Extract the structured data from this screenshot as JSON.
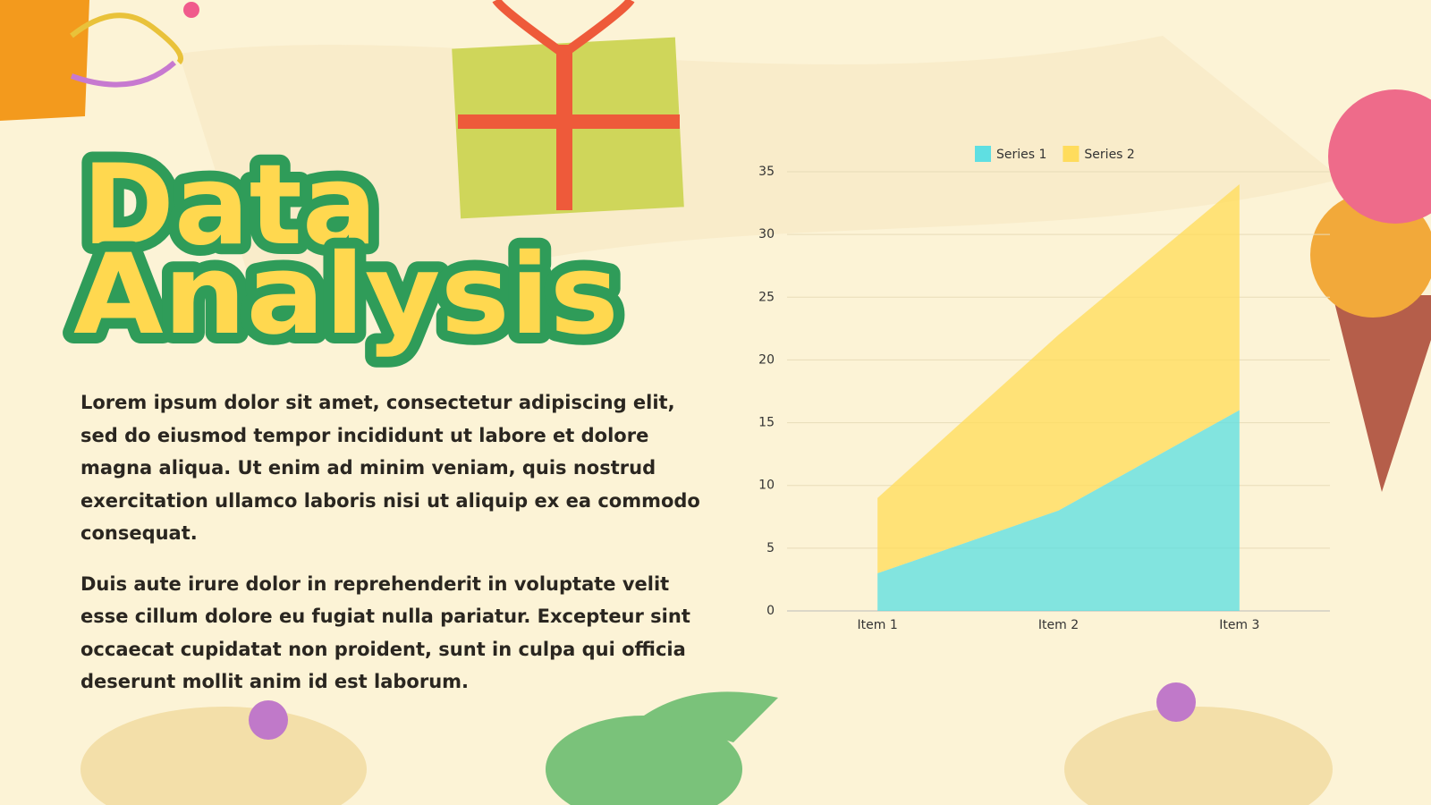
{
  "slide": {
    "title_lines": [
      "Data",
      "Analysis"
    ],
    "paragraphs": [
      "Lorem ipsum dolor sit amet, consectetur adipiscing elit, sed do eiusmod tempor incididunt ut labore et dolore magna aliqua. Ut enim ad minim veniam, quis nostrud exercitation ullamco laboris nisi ut aliquip ex ea commodo consequat.",
      "Duis aute irure dolor in reprehenderit in voluptate velit esse cillum dolore eu fugiat nulla pariatur. Excepteur sint occaecat cupidatat non proident, sunt in culpa qui officia deserunt mollit anim id est laborum."
    ]
  },
  "chart_data": {
    "type": "stacked_area",
    "categories": [
      "Item 1",
      "Item 2",
      "Item 3"
    ],
    "series": [
      {
        "name": "Series 1",
        "color": "#5fdfe2",
        "values": [
          3,
          8,
          16
        ]
      },
      {
        "name": "Series 2",
        "color": "#ffdc5c",
        "values": [
          6,
          14,
          18
        ]
      }
    ],
    "ylim": [
      0,
      35
    ],
    "yticks": [
      0,
      5,
      10,
      15,
      20,
      25,
      30,
      35
    ],
    "grid": true,
    "legend": "top"
  }
}
